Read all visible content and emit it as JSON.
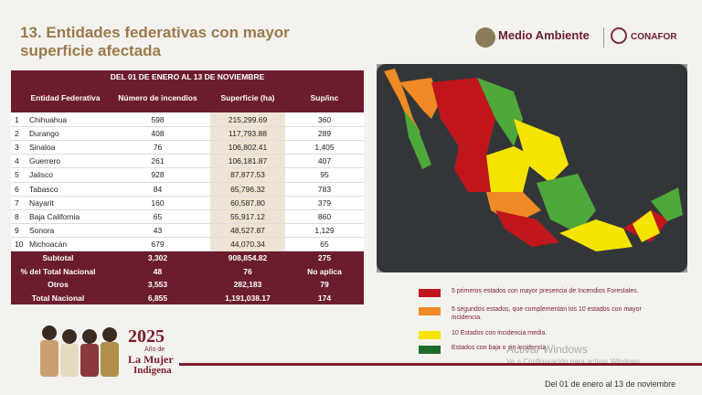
{
  "header": {
    "title": "13. Entidades federativas con mayor superficie afectada",
    "logo_left": "Medio Ambiente",
    "logo_right": "CONAFOR"
  },
  "table": {
    "period": "DEL 01 DE ENERO AL 13 DE NOVIEMBRE",
    "columns": [
      "Entidad Federativa",
      "Número de incendios",
      "Superficie (ha)",
      "Sup/inc"
    ],
    "rows": [
      [
        "1",
        "Chihuahua",
        "598",
        "215,299.69",
        "360"
      ],
      [
        "2",
        "Durango",
        "408",
        "117,793.88",
        "289"
      ],
      [
        "3",
        "Sinaloa",
        "76",
        "106,802.41",
        "1,405"
      ],
      [
        "4",
        "Guerrero",
        "261",
        "106,181.87",
        "407"
      ],
      [
        "5",
        "Jalisco",
        "928",
        "87,877.53",
        "95"
      ],
      [
        "6",
        "Tabasco",
        "84",
        "65,796.32",
        "783"
      ],
      [
        "7",
        "Nayarit",
        "160",
        "60,587.80",
        "379"
      ],
      [
        "8",
        "Baja California",
        "65",
        "55,917.12",
        "860"
      ],
      [
        "9",
        "Sonora",
        "43",
        "48,527.87",
        "1,129"
      ],
      [
        "10",
        "Michoacán",
        "679",
        "44,070.34",
        "65"
      ]
    ],
    "summary": [
      [
        "Subtotal",
        "3,302",
        "908,854.82",
        "275"
      ],
      [
        "% del Total Nacional",
        "48",
        "76",
        "No aplica"
      ],
      [
        "Otros",
        "3,553",
        "282,183",
        "79"
      ],
      [
        "Total Nacional",
        "6,855",
        "1,191,038.17",
        "174"
      ]
    ]
  },
  "legend": [
    {
      "color": "#c0161b",
      "label": "5 primeros estados con mayor presencia de Incendios Forestales."
    },
    {
      "color": "#f08a24",
      "label": "5 segundos estados, que complementan los 10 estados con mayor incidencia."
    },
    {
      "color": "#f5e400",
      "label": "10 Estados con incidencia media."
    },
    {
      "color": "#1f6b2a",
      "label": "Estados con baja o sin incidencia."
    }
  ],
  "badge": {
    "year": "2025",
    "line1": "Año de",
    "line2": "La Mujer",
    "line3": "Indígena"
  },
  "watermark": {
    "title": "Activar Windows",
    "subtitle": "Ve a Configuración para activar Windows."
  },
  "footer": "Del 01 de enero al 13 de noviembre"
}
